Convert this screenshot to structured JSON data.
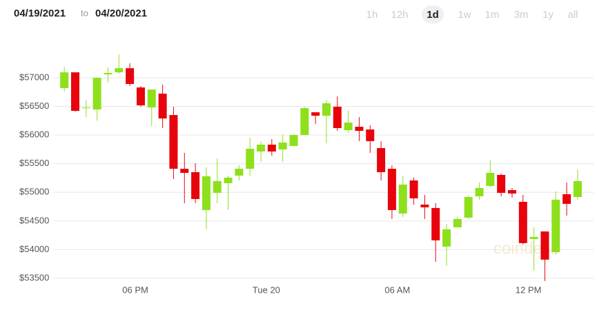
{
  "header": {
    "from": "04/19/2021",
    "separator": "to",
    "to": "04/20/2021",
    "ranges": [
      "1h",
      "12h",
      "1d",
      "1w",
      "1m",
      "3m",
      "1y",
      "all"
    ],
    "selected_range": "1d"
  },
  "chart_data": {
    "type": "candlestick",
    "watermark": "coindesk",
    "up_color": "#8ee01c",
    "down_color": "#e8040c",
    "grid": true,
    "x": [
      14.75,
      15.25,
      15.75,
      16.25,
      16.75,
      17.25,
      17.75,
      18.25,
      18.75,
      19.25,
      19.75,
      20.25,
      20.75,
      21.25,
      21.75,
      22.25,
      22.75,
      23.25,
      23.75,
      24.25,
      24.75,
      25.25,
      25.75,
      26.25,
      26.75,
      27.25,
      27.75,
      28.25,
      28.75,
      29.25,
      29.75,
      30.25,
      30.75,
      31.25,
      31.75,
      32.25,
      32.75,
      33.25,
      33.75,
      34.25,
      34.75,
      35.25,
      35.75,
      36.25,
      36.75,
      37.25,
      37.75,
      38.25
    ],
    "open": [
      56820,
      57096,
      56470,
      56447,
      57060,
      57096,
      57168,
      56832,
      56483,
      56724,
      56350,
      55412,
      55352,
      54690,
      54990,
      55160,
      55292,
      55412,
      55713,
      55833,
      55749,
      55809,
      56002,
      56399,
      56338,
      56495,
      56086,
      56146,
      56098,
      55773,
      55412,
      54630,
      55208,
      54786,
      54726,
      54052,
      54389,
      54558,
      54931,
      55111,
      55304,
      55039,
      54834,
      54185,
      54317,
      53956,
      54967,
      54919
    ],
    "high": [
      57192,
      57096,
      56615,
      57010,
      57180,
      57409,
      57253,
      56856,
      56796,
      56880,
      56495,
      55689,
      55508,
      55436,
      55593,
      55292,
      55472,
      55954,
      55894,
      55930,
      56014,
      56014,
      56495,
      56399,
      56615,
      56675,
      56435,
      56314,
      56170,
      55894,
      55472,
      55292,
      55256,
      54955,
      54810,
      54450,
      54570,
      54943,
      55172,
      55557,
      55328,
      55075,
      54955,
      54389,
      54317,
      55015,
      55172,
      55400
    ],
    "low": [
      56760,
      56410,
      56314,
      56254,
      56916,
      57072,
      56856,
      56495,
      56158,
      56122,
      55232,
      54810,
      54810,
      54353,
      54810,
      54690,
      55208,
      55292,
      55532,
      55641,
      55532,
      55809,
      56002,
      56194,
      55857,
      56074,
      56038,
      55894,
      55689,
      55208,
      54534,
      54570,
      54786,
      54534,
      53788,
      53716,
      54389,
      54534,
      54871,
      55087,
      54931,
      54907,
      54089,
      53632,
      53451,
      53909,
      54594,
      54871
    ],
    "close": [
      57096,
      56423,
      56480,
      57000,
      57084,
      57168,
      56892,
      56519,
      56796,
      56290,
      55412,
      55340,
      54883,
      55280,
      55196,
      55256,
      55412,
      55761,
      55833,
      55713,
      55870,
      56002,
      56471,
      56338,
      56555,
      56122,
      56218,
      56074,
      55894,
      55352,
      54690,
      55135,
      54895,
      54738,
      54161,
      54353,
      54534,
      54919,
      55075,
      55340,
      54991,
      54979,
      54113,
      54221,
      53824,
      54871,
      54799,
      55196
    ],
    "xlim": [
      14.27,
      38.6
    ],
    "xticks": [
      {
        "value": 18,
        "label": "06 PM"
      },
      {
        "value": 24,
        "label": "Tue 20"
      },
      {
        "value": 30,
        "label": "06 AM"
      },
      {
        "value": 36,
        "label": "12 PM"
      }
    ],
    "ylim": [
      53247,
      57457
    ],
    "yticks": [
      {
        "value": 53500,
        "label": "$53500"
      },
      {
        "value": 54000,
        "label": "$54000"
      },
      {
        "value": 54500,
        "label": "$54500"
      },
      {
        "value": 55000,
        "label": "$55000"
      },
      {
        "value": 55500,
        "label": "$55500"
      },
      {
        "value": 56000,
        "label": "$56000"
      },
      {
        "value": 56500,
        "label": "$56500"
      },
      {
        "value": 57000,
        "label": "$57000"
      }
    ]
  }
}
